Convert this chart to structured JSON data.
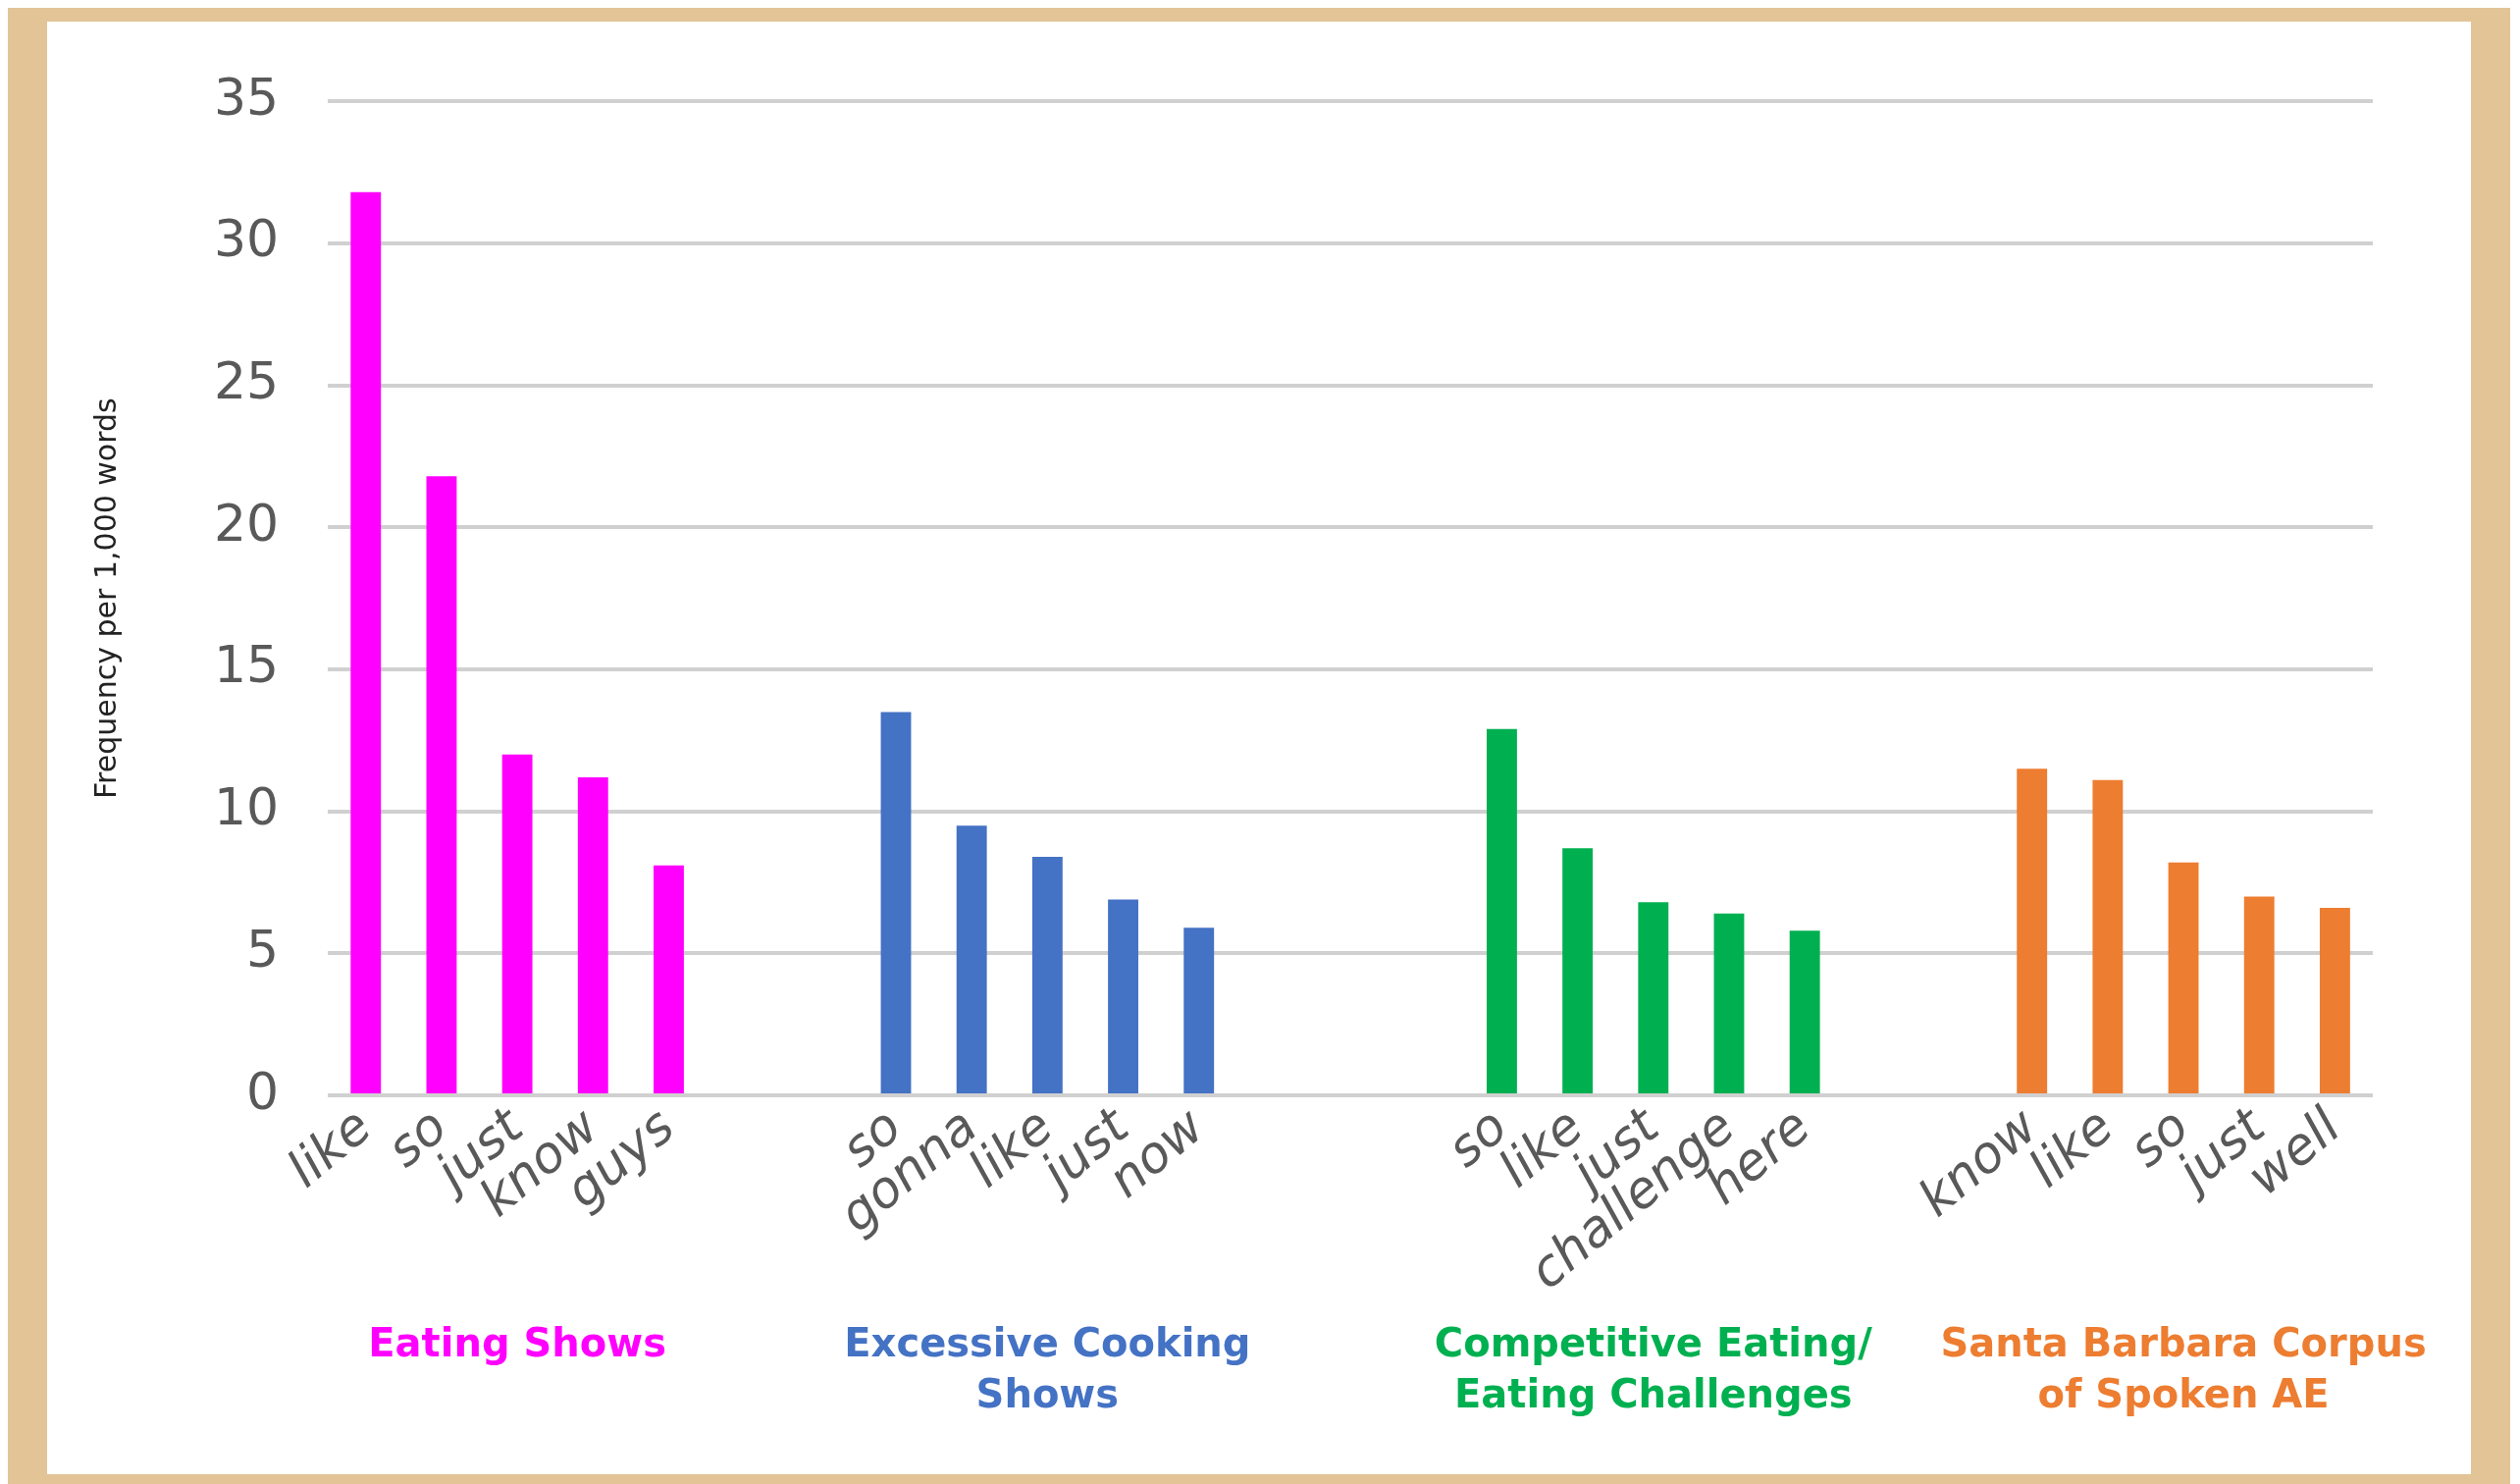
{
  "chart_data": {
    "type": "bar",
    "ylabel": "Frequency per 1,000 words",
    "categories": [
      "like",
      "so",
      "just",
      "know",
      "guys",
      null,
      null,
      "so",
      "gonna",
      "like",
      "just",
      "now",
      null,
      null,
      null,
      "so",
      "like",
      "just",
      "challenge",
      "here",
      null,
      null,
      "know",
      "like",
      "so",
      "just",
      "well"
    ],
    "series": [
      {
        "name": "Eating Shows",
        "color": "#ff00ff",
        "values": [
          31.8,
          21.8,
          12.0,
          11.2,
          8.1,
          null,
          null,
          null,
          null,
          null,
          null,
          null,
          null,
          null,
          null,
          null,
          null,
          null,
          null,
          null,
          null,
          null,
          null,
          null,
          null,
          null,
          null
        ]
      },
      {
        "name": "Excessive Cooking Shows",
        "color": "#4472c4",
        "values": [
          null,
          null,
          null,
          null,
          null,
          null,
          null,
          13.5,
          9.5,
          8.4,
          6.9,
          5.9,
          null,
          null,
          null,
          null,
          null,
          null,
          null,
          null,
          null,
          null,
          null,
          null,
          null,
          null,
          null
        ]
      },
      {
        "name": "Competitive Eating/ Eating Challenges",
        "color": "#00b050",
        "values": [
          null,
          null,
          null,
          null,
          null,
          null,
          null,
          null,
          null,
          null,
          null,
          null,
          null,
          null,
          null,
          12.9,
          8.7,
          6.8,
          6.4,
          5.8,
          null,
          null,
          null,
          null,
          null,
          null,
          null
        ]
      },
      {
        "name": "Santa Barbara Corpus of Spoken AE",
        "color": "#ed7d31",
        "values": [
          null,
          null,
          null,
          null,
          null,
          null,
          null,
          null,
          null,
          null,
          null,
          null,
          null,
          null,
          null,
          null,
          null,
          null,
          null,
          null,
          null,
          null,
          11.5,
          11.1,
          8.2,
          7.0,
          6.6
        ]
      }
    ],
    "ylim": [
      0,
      35
    ],
    "yticks": [
      0,
      5,
      10,
      15,
      20,
      25,
      30,
      35
    ],
    "grid": "y",
    "legend": false
  }
}
